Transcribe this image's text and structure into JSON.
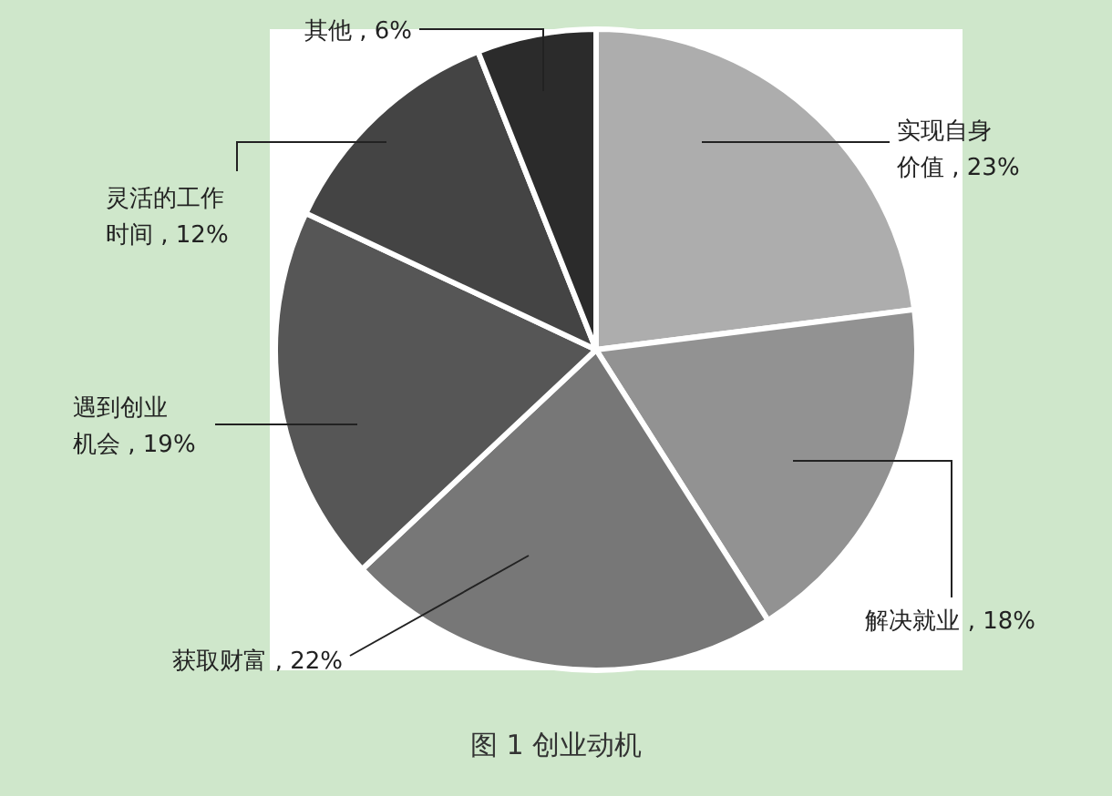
{
  "chart_data": {
    "type": "pie",
    "title": "图 1  创业动机",
    "categories": [
      "实现自身价值",
      "解决就业",
      "获取财富",
      "遇到创业机会",
      "灵活的工作时间",
      "其他"
    ],
    "values": [
      23,
      18,
      22,
      19,
      12,
      6
    ],
    "value_labels": [
      "23%",
      "18%",
      "22%",
      "19%",
      "12%",
      "6%"
    ],
    "colors": [
      "#adadad",
      "#929292",
      "#777777",
      "#565656",
      "#444444",
      "#2b2b2b"
    ]
  }
}
